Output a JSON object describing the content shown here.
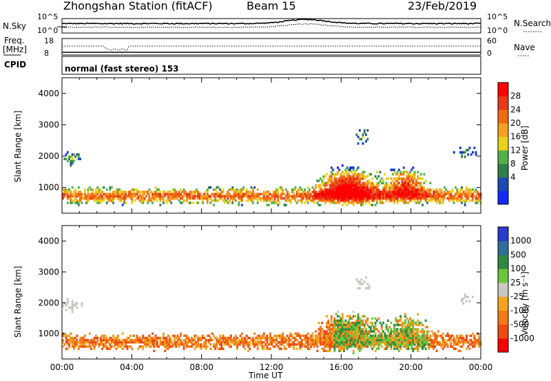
{
  "header": {
    "station": "Zhongshan Station (fitACF)",
    "beam": "Beam 15",
    "date": "23/Feb/2019"
  },
  "noise_panel": {
    "left_label": "N.Sky",
    "right_label": "N.Search",
    "left_ticks": [
      "10^5",
      "10^0"
    ],
    "right_ticks": [
      "10^5",
      "10^0"
    ]
  },
  "freq_panel": {
    "left_label_line1": "Freq.",
    "left_label_line2": "[MHz]",
    "left_ticks": [
      "18",
      "8"
    ],
    "right_label": "Nave",
    "right_ticks": [
      "60",
      "0"
    ],
    "cpid_label": "CPID",
    "mode_text": "normal (fast stereo) 153"
  },
  "colors": {
    "power_scale": [
      "#1428ff",
      "#1e48b4",
      "#2f7d4a",
      "#52b048",
      "#e8d21c",
      "#f5a020",
      "#f26a10",
      "#e83a1a",
      "#ff0000"
    ],
    "velocity_scale": [
      "#2a3cc8",
      "#2f6e9a",
      "#2e8a3e",
      "#6bc43c",
      "#c8c8c0",
      "#f2a41e",
      "#f27a16",
      "#ee4a12",
      "#ff0000"
    ]
  },
  "chart_data": [
    {
      "type": "heatmap",
      "name": "power",
      "ylabel": "Slant Range [km]",
      "xlabel": "Time UT",
      "xlim_hours": [
        0,
        24
      ],
      "ylim_km": [
        180,
        4500
      ],
      "y_ticks": [
        "1000",
        "2000",
        "3000",
        "4000"
      ],
      "x_ticks": [
        "00:00",
        "04:00",
        "08:00",
        "12:00",
        "16:00",
        "20:00",
        "00:00"
      ],
      "colorbar_label": "Power [dB]",
      "colorbar_ticks": [
        "28",
        "24",
        "20",
        "16",
        "12",
        "8",
        "4"
      ],
      "colorbar_range": [
        0,
        30
      ]
    },
    {
      "type": "heatmap",
      "name": "velocity",
      "ylabel": "Slant Range [km]",
      "xlabel": "Time UT",
      "xlim_hours": [
        0,
        24
      ],
      "ylim_km": [
        180,
        4500
      ],
      "y_ticks": [
        "1000",
        "2000",
        "3000",
        "4000"
      ],
      "x_ticks": [
        "00:00",
        "04:00",
        "08:00",
        "12:00",
        "16:00",
        "20:00",
        "00:00"
      ],
      "colorbar_label": "Velocity [m s⁻¹]",
      "colorbar_ticks": [
        "1000",
        "500",
        "100",
        "25",
        "-25",
        "-100",
        "-500",
        "-1000"
      ]
    }
  ]
}
